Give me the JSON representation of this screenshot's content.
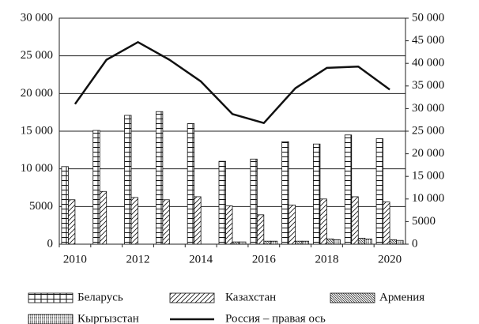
{
  "chart_data": {
    "type": "bar-line",
    "categories": [
      "2010",
      null,
      "2012",
      null,
      "2014",
      null,
      "2016",
      null,
      "2018",
      null,
      "2020"
    ],
    "ylim": [
      0,
      30000
    ],
    "yticks": [
      0,
      5000,
      {
        "value": 10000,
        "label": "10 000"
      },
      {
        "value": 15000,
        "label": "15 000"
      },
      {
        "value": 20000,
        "label": "20 000"
      },
      {
        "value": 25000,
        "label": "25 000"
      },
      {
        "value": 30000,
        "label": "30 000"
      }
    ],
    "y2lim": [
      0,
      50000
    ],
    "y2ticks": [
      0,
      5000,
      {
        "value": 10000,
        "label": "10 000"
      },
      {
        "value": 15000,
        "label": "15 000"
      },
      {
        "value": 20000,
        "label": "20 000"
      },
      {
        "value": 25000,
        "label": "25 000"
      },
      {
        "value": 30000,
        "label": "30 000"
      },
      {
        "value": 35000,
        "label": "35 000"
      },
      {
        "value": 40000,
        "label": "40 000"
      },
      {
        "value": 45000,
        "label": "45 000"
      },
      {
        "value": 50000,
        "label": "50 000"
      }
    ],
    "grid": true,
    "legend": "bottom",
    "series": [
      {
        "name": "Беларусь",
        "type": "bar",
        "pattern": "grid",
        "color": "#111111",
        "values": [
          10300,
          15100,
          17100,
          17600,
          16000,
          11000,
          11300,
          13600,
          13300,
          14500,
          14000
        ]
      },
      {
        "name": "Казахстан",
        "type": "bar",
        "pattern": "diagonal",
        "color": "#111111",
        "values": [
          5900,
          7000,
          6200,
          5900,
          6300,
          5100,
          3900,
          5200,
          6000,
          6300,
          5600
        ]
      },
      {
        "name": "Армения",
        "type": "bar",
        "pattern": "dense",
        "color": "#111111",
        "values": [
          null,
          null,
          null,
          null,
          null,
          300,
          400,
          400,
          700,
          800,
          600
        ]
      },
      {
        "name": "Кыргызстан",
        "type": "bar",
        "pattern": "dots",
        "color": "#111111",
        "values": [
          null,
          null,
          null,
          null,
          null,
          300,
          400,
          400,
          600,
          700,
          500
        ]
      },
      {
        "name": "Россия – правая ось",
        "type": "line",
        "axis": "y2",
        "color": "#111111",
        "values": [
          31000,
          40800,
          44700,
          40800,
          36000,
          28800,
          26800,
          34500,
          39000,
          39300,
          34200
        ]
      }
    ]
  }
}
